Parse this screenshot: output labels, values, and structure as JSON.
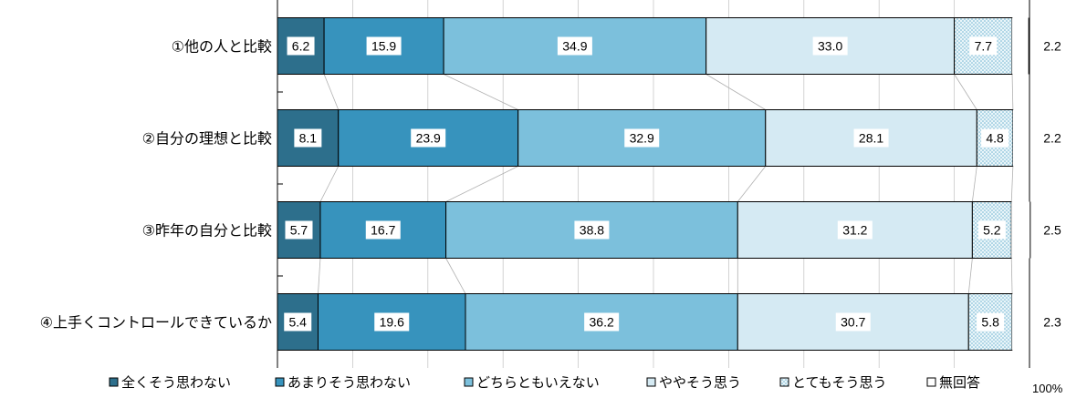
{
  "chart_data": {
    "type": "bar",
    "stacked": true,
    "orientation": "horizontal",
    "percent": true,
    "title": "",
    "xlabel": "",
    "ylabel": "",
    "xlim": [
      0,
      100
    ],
    "grid": true,
    "legend_position": "bottom",
    "axis_end_label": "100%",
    "categories": [
      "①他の人と比較",
      "②自分の理想と比較",
      "③昨年の自分と比較",
      "④上手くコントロールできているか"
    ],
    "series": [
      {
        "name": "全くそう思わない",
        "color": "#2d6f8c",
        "values": [
          6.2,
          8.1,
          5.7,
          5.4
        ]
      },
      {
        "name": "あまりそう思わない",
        "color": "#3793bd",
        "values": [
          15.9,
          23.9,
          16.7,
          19.6
        ]
      },
      {
        "name": "どちらともいえない",
        "color": "#7cc0dc",
        "values": [
          34.9,
          32.9,
          38.8,
          36.2
        ]
      },
      {
        "name": "ややそう思う",
        "color": "#d5eaf3",
        "values": [
          33.0,
          28.1,
          31.2,
          30.7
        ]
      },
      {
        "name": "とてもそう思う",
        "color": "#e9f5f9",
        "pattern": "dots",
        "values": [
          7.7,
          4.8,
          5.2,
          5.8
        ]
      },
      {
        "name": "無回答",
        "color": "#ffffff",
        "values": [
          2.2,
          2.2,
          2.5,
          2.3
        ]
      }
    ]
  }
}
